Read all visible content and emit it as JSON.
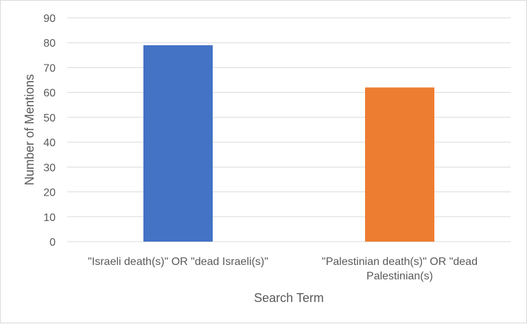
{
  "chart_data": {
    "type": "bar",
    "categories": [
      "\"Israeli death(s)\" OR \"dead Israeli(s)\"",
      "\"Palestinian death(s)\" OR \"dead Palestinian(s)"
    ],
    "category_lines": [
      [
        "\"Israeli death(s)\" OR \"dead Israeli(s)\""
      ],
      [
        "\"Palestinian death(s)\" OR \"dead",
        "Palestinian(s)"
      ]
    ],
    "values": [
      79,
      62
    ],
    "bar_colors": [
      "#4472C4",
      "#ED7D31"
    ],
    "xlabel": "Search Term",
    "ylabel": "Number of Mentions",
    "ylim": [
      0,
      90
    ],
    "yticks": [
      0,
      10,
      20,
      30,
      40,
      50,
      60,
      70,
      80,
      90
    ],
    "grid": true,
    "legend": "none"
  }
}
